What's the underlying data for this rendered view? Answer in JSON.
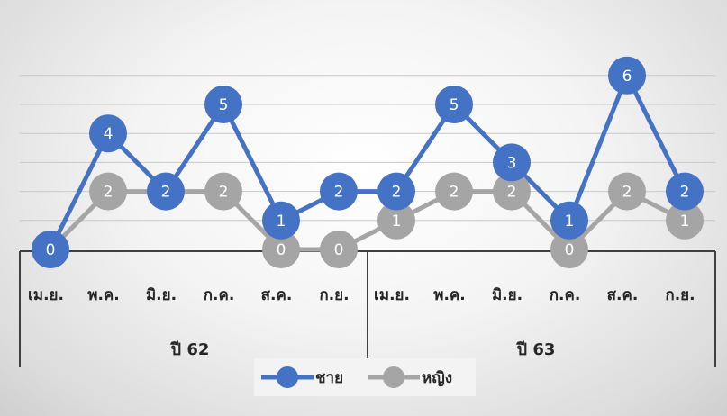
{
  "chart_data": {
    "type": "line",
    "categories": [
      "เม.ย.",
      "พ.ค.",
      "มิ.ย.",
      "ก.ค.",
      "ส.ค.",
      "ก.ย.",
      "เม.ย.",
      "พ.ค.",
      "มิ.ย.",
      "ก.ค.",
      "ส.ค.",
      "ก.ย."
    ],
    "groups": [
      {
        "label": "ปี 62",
        "count": 6
      },
      {
        "label": "ปี 63",
        "count": 6
      }
    ],
    "series": [
      {
        "name": "ชาย",
        "color": "#4472c4",
        "values": [
          0,
          4,
          2,
          5,
          1,
          2,
          2,
          5,
          3,
          1,
          6,
          2
        ]
      },
      {
        "name": "หญิง",
        "color": "#a5a5a5",
        "values": [
          0,
          2,
          2,
          2,
          0,
          0,
          1,
          2,
          2,
          0,
          2,
          1
        ]
      }
    ],
    "data_labels": true,
    "ylim": [
      0,
      7
    ],
    "grid": true,
    "legend": "bottom",
    "title": "",
    "xlabel": "",
    "ylabel": ""
  }
}
